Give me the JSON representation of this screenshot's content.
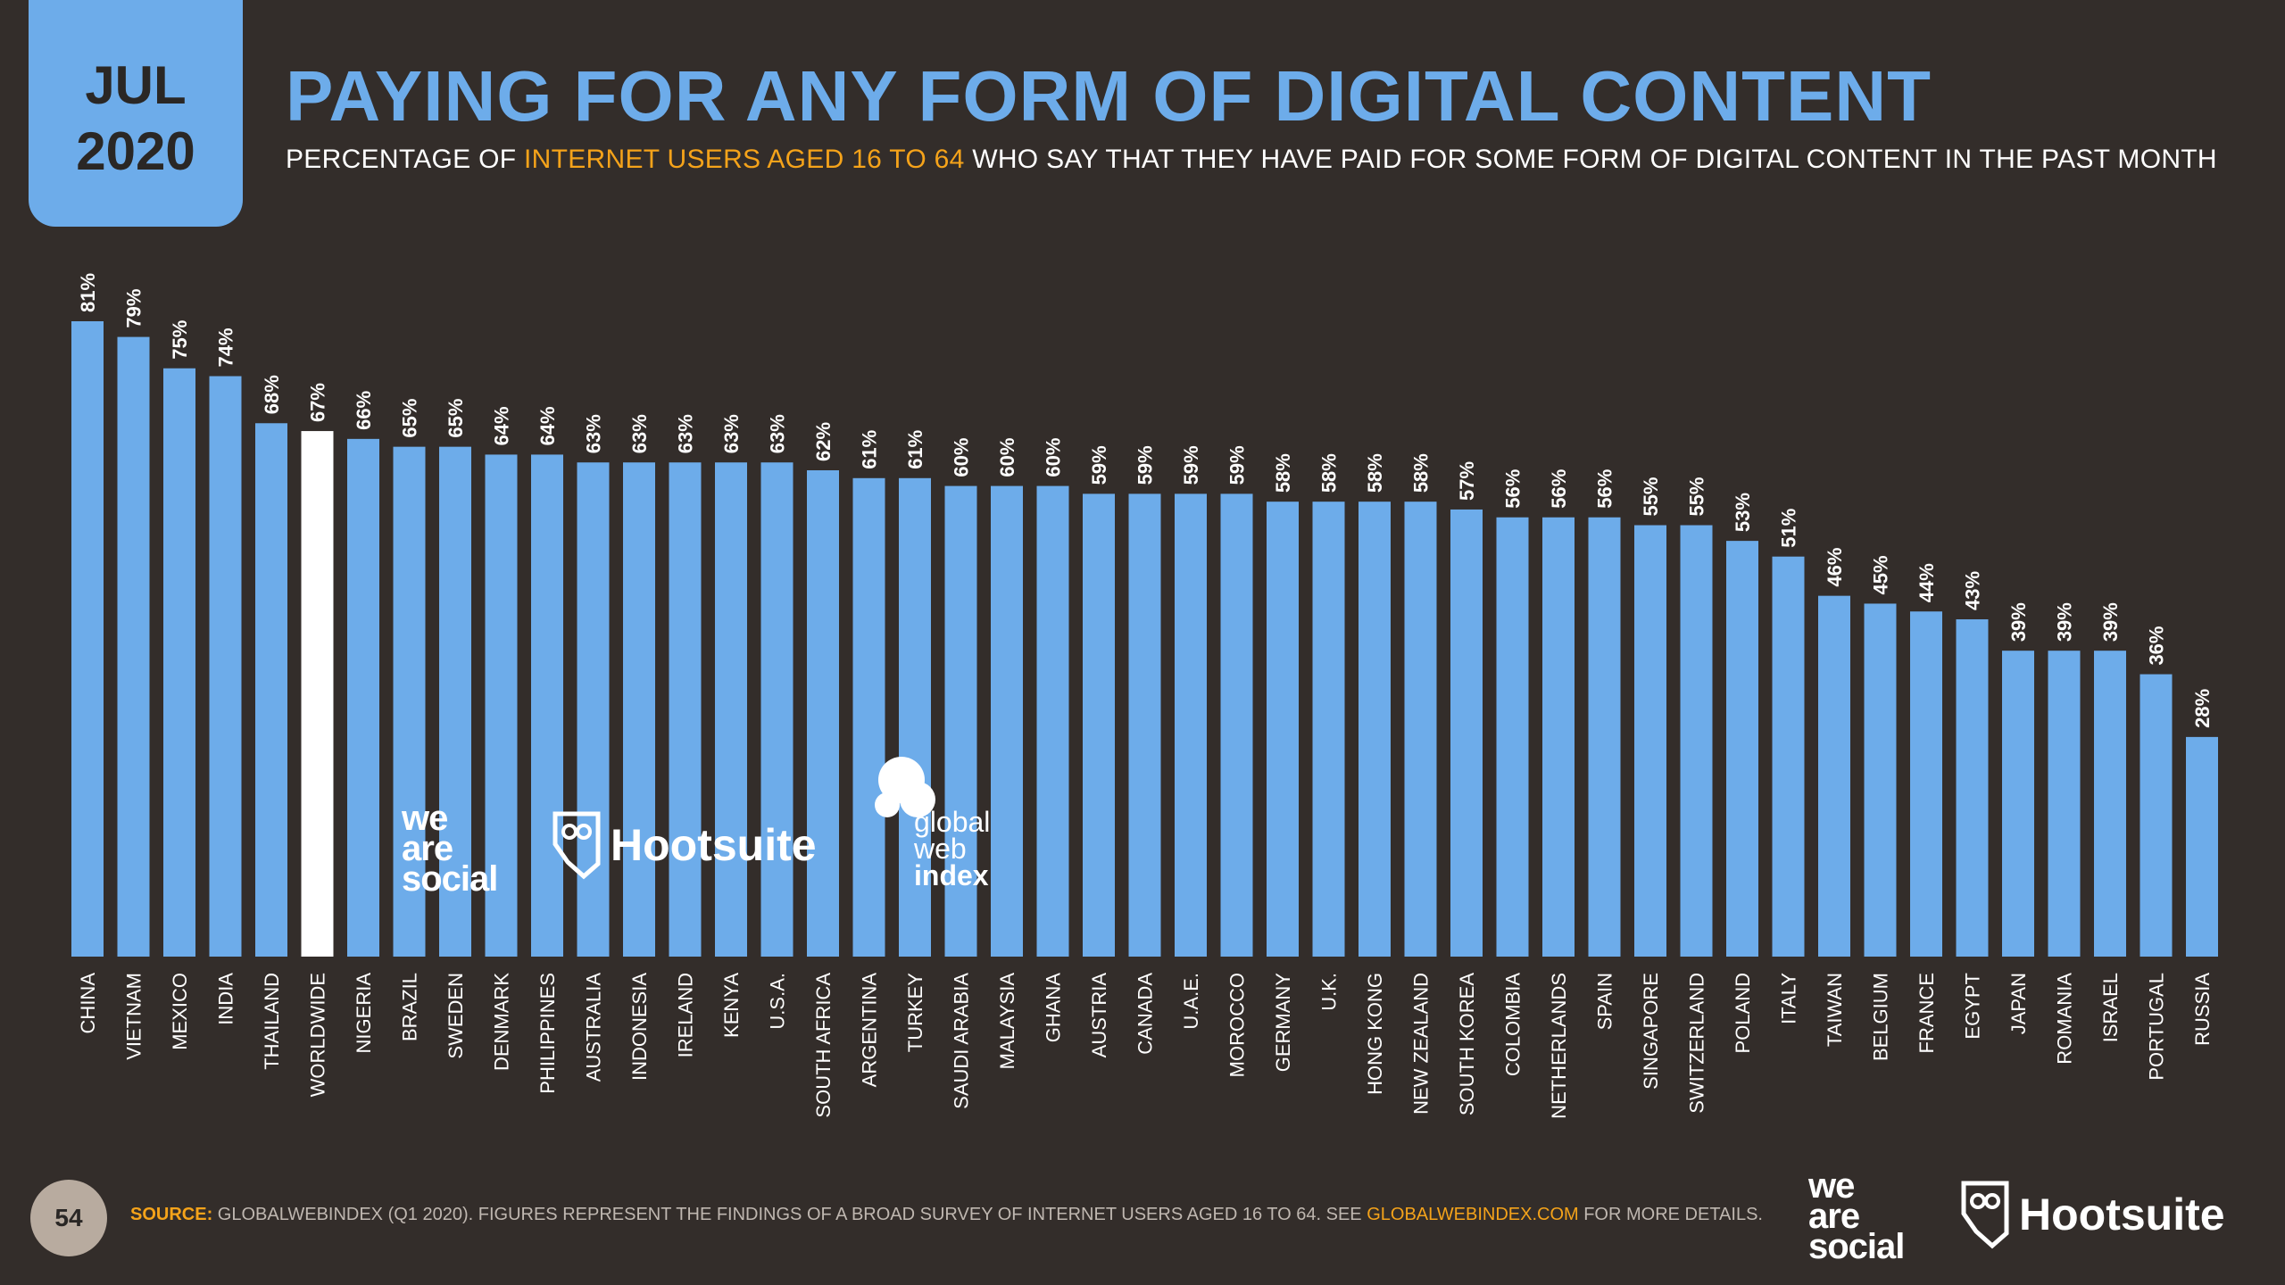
{
  "header": {
    "month": "JUL",
    "year": "2020",
    "title": "PAYING FOR ANY FORM OF DIGITAL CONTENT",
    "subtitle_pre": "PERCENTAGE OF ",
    "subtitle_highlight": "INTERNET USERS AGED 16 TO 64",
    "subtitle_post": " WHO SAY THAT THEY HAVE PAID FOR SOME FORM OF DIGITAL CONTENT IN THE PAST MONTH"
  },
  "footer": {
    "page_number": "54",
    "source_label": "SOURCE:",
    "source_text": " GLOBALWEBINDEX (Q1 2020). FIGURES REPRESENT THE FINDINGS OF A BROAD SURVEY OF INTERNET USERS AGED 16 TO 64. SEE ",
    "source_link": "GLOBALWEBINDEX.COM",
    "source_tail": " FOR MORE DETAILS."
  },
  "brands": {
    "we_are_social": [
      "we",
      "are",
      "social"
    ],
    "hootsuite": "Hootsuite",
    "gwi": [
      "global",
      "web",
      "index"
    ]
  },
  "colors": {
    "background": "#332d2a",
    "bar": "#6dacea",
    "highlight_bar": "#ffffff",
    "accent": "#f5a31a"
  },
  "chart_data": {
    "type": "bar",
    "title": "PAYING FOR ANY FORM OF DIGITAL CONTENT",
    "ylabel": "",
    "xlabel": "",
    "ylim": [
      0,
      81
    ],
    "highlight": "WORLDWIDE",
    "categories": [
      "CHINA",
      "VIETNAM",
      "MEXICO",
      "INDIA",
      "THAILAND",
      "WORLDWIDE",
      "NIGERIA",
      "BRAZIL",
      "SWEDEN",
      "DENMARK",
      "PHILIPPINES",
      "AUSTRALIA",
      "INDONESIA",
      "IRELAND",
      "KENYA",
      "U.S.A.",
      "SOUTH AFRICA",
      "ARGENTINA",
      "TURKEY",
      "SAUDI ARABIA",
      "MALAYSIA",
      "GHANA",
      "AUSTRIA",
      "CANADA",
      "U.A.E.",
      "MOROCCO",
      "GERMANY",
      "U.K.",
      "HONG KONG",
      "NEW ZEALAND",
      "SOUTH KOREA",
      "COLOMBIA",
      "NETHERLANDS",
      "SPAIN",
      "SINGAPORE",
      "SWITZERLAND",
      "POLAND",
      "ITALY",
      "TAIWAN",
      "BELGIUM",
      "FRANCE",
      "EGYPT",
      "JAPAN",
      "ROMANIA",
      "ISRAEL",
      "PORTUGAL",
      "RUSSIA"
    ],
    "values": [
      81,
      79,
      75,
      74,
      68,
      67,
      66,
      65,
      65,
      64,
      64,
      63,
      63,
      63,
      63,
      63,
      62,
      61,
      61,
      60,
      60,
      60,
      59,
      59,
      59,
      59,
      58,
      58,
      58,
      58,
      57,
      56,
      56,
      56,
      55,
      55,
      53,
      51,
      46,
      45,
      44,
      43,
      39,
      39,
      39,
      36,
      28
    ],
    "value_suffix": "%"
  }
}
